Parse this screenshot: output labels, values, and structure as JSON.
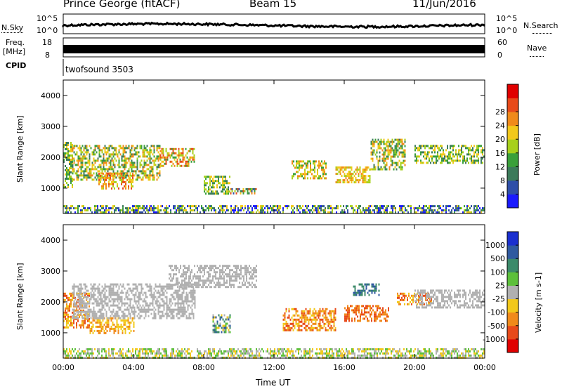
{
  "header": {
    "station": "Prince George (fitACF)",
    "beam": "Beam 15",
    "date": "11/Jun/2016"
  },
  "strip_panels": {
    "nsky_label": "N.Sky",
    "nsearch_label": "N.Search",
    "noise_left_ticks": [
      "10^5",
      "10^0"
    ],
    "noise_right_ticks": [
      "10^5",
      "10^0"
    ],
    "freq_label": "Freq.",
    "freq_unit": "[MHz]",
    "freq_ticks": [
      "18",
      "8"
    ],
    "nave_label": "Nave",
    "nave_ticks": [
      "60",
      "0"
    ],
    "cpid_label": "CPID",
    "cpid_value": "twofsound 3503"
  },
  "chart_data": [
    {
      "type": "heatmap",
      "name": "power",
      "ylabel": "Slant Range [km]",
      "ylim": [
        180,
        4500
      ],
      "yticks": [
        1000,
        2000,
        3000,
        4000
      ],
      "xlim": [
        0,
        24
      ],
      "xticks": [
        "00:00",
        "04:00",
        "08:00",
        "12:00",
        "16:00",
        "20:00",
        "00:00"
      ],
      "colorbar": {
        "label": "Power [dB]",
        "ticks": [
          "4",
          "8",
          "12",
          "16",
          "20",
          "24",
          "28"
        ],
        "colors": [
          "#1a1aff",
          "#2f4fa8",
          "#3c7a5a",
          "#3aa03a",
          "#a7d01c",
          "#f2c81a",
          "#f08a1a",
          "#e84a1a",
          "#e00000"
        ]
      },
      "regions": [
        {
          "t0": 0.0,
          "t1": 0.5,
          "r0": 1000,
          "r1": 2500,
          "level": [
            2,
            5
          ]
        },
        {
          "t0": 0.5,
          "t1": 5.5,
          "r0": 1300,
          "r1": 2400,
          "level": [
            2,
            6
          ]
        },
        {
          "t0": 5.5,
          "t1": 7.5,
          "r0": 1700,
          "r1": 2300,
          "level": [
            3,
            7
          ]
        },
        {
          "t0": 2.0,
          "t1": 4.0,
          "r0": 1000,
          "r1": 1500,
          "level": [
            4,
            7
          ]
        },
        {
          "t0": 8.0,
          "t1": 9.5,
          "r0": 800,
          "r1": 1400,
          "level": [
            2,
            5
          ]
        },
        {
          "t0": 9.5,
          "t1": 11.0,
          "r0": 800,
          "r1": 1000,
          "level": [
            1,
            7
          ]
        },
        {
          "t0": 13.0,
          "t1": 15.0,
          "r0": 1300,
          "r1": 1900,
          "level": [
            3,
            6
          ]
        },
        {
          "t0": 15.5,
          "t1": 17.5,
          "r0": 1200,
          "r1": 1700,
          "level": [
            4,
            6
          ]
        },
        {
          "t0": 17.5,
          "t1": 19.5,
          "r0": 1600,
          "r1": 2600,
          "level": [
            2,
            6
          ]
        },
        {
          "t0": 20.0,
          "t1": 24.0,
          "r0": 1800,
          "r1": 2400,
          "level": [
            2,
            5
          ]
        },
        {
          "t0": 0.0,
          "t1": 24.0,
          "r0": 180,
          "r1": 450,
          "level": [
            0,
            5
          ]
        }
      ]
    },
    {
      "type": "heatmap",
      "name": "velocity",
      "ylabel": "Slant Range [km]",
      "ylim": [
        180,
        4500
      ],
      "yticks": [
        1000,
        2000,
        3000,
        4000
      ],
      "xlim": [
        0,
        24
      ],
      "xticks": [
        "00:00",
        "04:00",
        "08:00",
        "12:00",
        "16:00",
        "20:00",
        "00:00"
      ],
      "xlabel": "Time UT",
      "colorbar": {
        "label": "Velocity [m s-1]",
        "ticks": [
          "1000",
          "500",
          "100",
          "25",
          "-25",
          "-100",
          "-500",
          "-1000"
        ],
        "colors": [
          "#1a2fd0",
          "#2f5aa0",
          "#3c8a6a",
          "#5cc03a",
          "#b0b0b0",
          "#f2c81a",
          "#f08a1a",
          "#e84a1a",
          "#e00000"
        ]
      },
      "regions": [
        {
          "t0": 0.0,
          "t1": 1.5,
          "r0": 1200,
          "r1": 2300,
          "level": [
            5,
            7
          ]
        },
        {
          "t0": 1.5,
          "t1": 4.0,
          "r0": 1000,
          "r1": 1500,
          "level": [
            5,
            6
          ]
        },
        {
          "t0": 0.5,
          "t1": 7.5,
          "r0": 1500,
          "r1": 2600,
          "level": [
            4,
            4
          ]
        },
        {
          "t0": 6.0,
          "t1": 11.0,
          "r0": 2500,
          "r1": 3200,
          "level": [
            4,
            4
          ]
        },
        {
          "t0": 8.5,
          "t1": 9.5,
          "r0": 1000,
          "r1": 1600,
          "level": [
            1,
            5
          ]
        },
        {
          "t0": 12.5,
          "t1": 15.5,
          "r0": 1100,
          "r1": 1800,
          "level": [
            5,
            7
          ]
        },
        {
          "t0": 16.0,
          "t1": 18.5,
          "r0": 1400,
          "r1": 1900,
          "level": [
            6,
            7
          ]
        },
        {
          "t0": 16.5,
          "t1": 18.0,
          "r0": 2200,
          "r1": 2600,
          "level": [
            1,
            2
          ]
        },
        {
          "t0": 19.0,
          "t1": 21.0,
          "r0": 1900,
          "r1": 2300,
          "level": [
            5,
            7
          ]
        },
        {
          "t0": 20.0,
          "t1": 24.0,
          "r0": 1800,
          "r1": 2400,
          "level": [
            4,
            4
          ]
        },
        {
          "t0": 0.0,
          "t1": 24.0,
          "r0": 180,
          "r1": 500,
          "level": [
            3,
            5
          ]
        }
      ]
    }
  ]
}
